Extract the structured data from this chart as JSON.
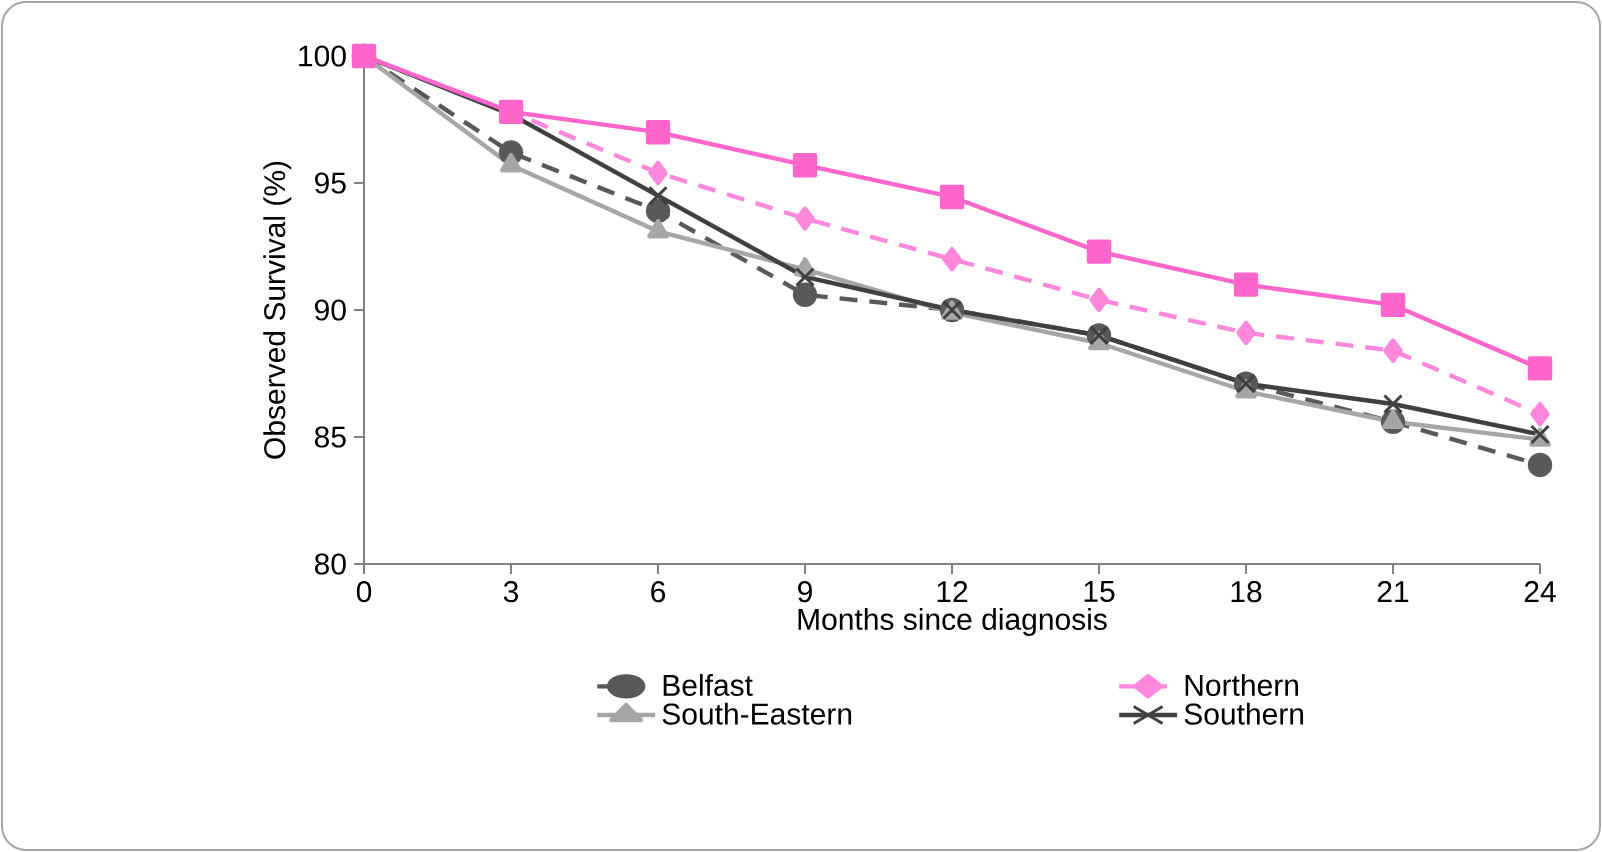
{
  "chart_data": {
    "type": "line",
    "xlabel": "Months since diagnosis",
    "ylabel": "Observed Survival (%)",
    "categories": [
      "0",
      "3",
      "6",
      "9",
      "12",
      "15",
      "18",
      "21",
      "24"
    ],
    "ylim": [
      80,
      100
    ],
    "yticks": [
      80,
      85,
      90,
      95,
      100
    ],
    "grid": false,
    "legend": "bottom",
    "series": [
      {
        "name": "Belfast",
        "color": "#595959",
        "marker": "circle",
        "line_style": "dashed",
        "values": [
          100,
          96.2,
          93.9,
          90.6,
          90.0,
          89.0,
          87.1,
          85.6,
          83.9
        ]
      },
      {
        "name": "Northern",
        "color": "#ff88dd",
        "marker": "diamond",
        "line_style": "dashed",
        "values": [
          100,
          97.8,
          95.4,
          93.6,
          92.0,
          90.4,
          89.1,
          88.4,
          85.9
        ]
      },
      {
        "name": "South-Eastern",
        "color": "#a6a6a6",
        "marker": "triangle",
        "line_style": "solid",
        "values": [
          100,
          95.7,
          93.1,
          91.6,
          89.9,
          88.7,
          86.8,
          85.6,
          84.9
        ]
      },
      {
        "name": "Southern",
        "color": "#404040",
        "marker": "cross",
        "line_style": "solid",
        "values": [
          100,
          97.7,
          94.5,
          91.3,
          90.0,
          89.0,
          87.1,
          86.3,
          85.1
        ]
      },
      {
        "name": null,
        "color": "#ff66cc",
        "marker": "square",
        "line_style": "solid",
        "values": [
          100,
          97.8,
          97.0,
          95.7,
          94.45,
          92.3,
          91.0,
          90.2,
          87.7
        ]
      }
    ]
  }
}
